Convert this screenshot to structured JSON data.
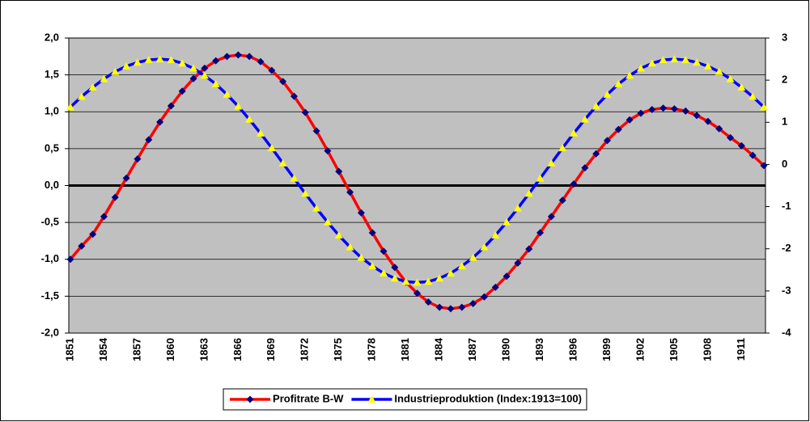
{
  "chart_data": {
    "type": "line",
    "categories": [
      "1851",
      null,
      null,
      "1854",
      null,
      null,
      "1857",
      null,
      null,
      "1860",
      null,
      null,
      "1863",
      null,
      null,
      "1866",
      null,
      null,
      "1869",
      null,
      null,
      "1872",
      null,
      null,
      "1875",
      null,
      null,
      "1878",
      null,
      null,
      "1881",
      null,
      null,
      "1884",
      null,
      null,
      "1887",
      null,
      null,
      "1890",
      null,
      null,
      "1893",
      null,
      null,
      "1896",
      null,
      null,
      "1899",
      null,
      null,
      "1902",
      null,
      null,
      "1905",
      null,
      null,
      "1908",
      null,
      null,
      "1911",
      null,
      null
    ],
    "series": [
      {
        "name": "Profitrate B-W",
        "color": "#ff0000",
        "marker": "diamond",
        "marker_color": "#000080",
        "values": [
          -1.0,
          -0.82,
          -0.66,
          -0.42,
          -0.16,
          0.1,
          0.36,
          0.62,
          0.86,
          1.08,
          1.28,
          1.45,
          1.59,
          1.69,
          1.75,
          1.77,
          1.75,
          1.68,
          1.56,
          1.41,
          1.21,
          0.99,
          0.74,
          0.47,
          0.19,
          -0.09,
          -0.37,
          -0.64,
          -0.89,
          -1.11,
          -1.31,
          -1.46,
          -1.58,
          -1.65,
          -1.67,
          -1.65,
          -1.6,
          -1.51,
          -1.38,
          -1.23,
          -1.05,
          -0.86,
          -0.64,
          -0.42,
          -0.2,
          0.02,
          0.24,
          0.43,
          0.61,
          0.76,
          0.89,
          0.98,
          1.03,
          1.05,
          1.04,
          1.01,
          0.95,
          0.87,
          0.77,
          0.65,
          0.54,
          0.41,
          0.27
        ]
      },
      {
        "name": "Industrieproduktion (Index:1913=100)",
        "color": "#0000ff",
        "marker": "triangle",
        "marker_color": "#ffff00",
        "axis": "y2",
        "values": [
          1.36,
          1.61,
          1.83,
          2.03,
          2.2,
          2.33,
          2.42,
          2.48,
          2.5,
          2.48,
          2.4,
          2.28,
          2.11,
          1.91,
          1.66,
          1.38,
          1.07,
          0.74,
          0.39,
          0.03,
          -0.33,
          -0.69,
          -1.04,
          -1.37,
          -1.68,
          -1.96,
          -2.21,
          -2.41,
          -2.58,
          -2.7,
          -2.78,
          -2.8,
          -2.78,
          -2.7,
          -2.58,
          -2.41,
          -2.21,
          -1.96,
          -1.68,
          -1.37,
          -1.04,
          -0.69,
          -0.33,
          0.03,
          0.39,
          0.74,
          1.07,
          1.38,
          1.66,
          1.91,
          2.11,
          2.28,
          2.4,
          2.48,
          2.5,
          2.48,
          2.42,
          2.33,
          2.2,
          2.03,
          1.83,
          1.61,
          1.36
        ]
      }
    ],
    "ylim": [
      -2,
      2
    ],
    "yticks": [
      {
        "value": -2,
        "label": "-2,0"
      },
      {
        "value": -1.5,
        "label": "-1,5"
      },
      {
        "value": -1,
        "label": "-1,0"
      },
      {
        "value": -0.5,
        "label": "-0,5"
      },
      {
        "value": 0,
        "label": "0,0"
      },
      {
        "value": 0.5,
        "label": "0,5"
      },
      {
        "value": 1,
        "label": "1,0"
      },
      {
        "value": 1.5,
        "label": "1,5"
      },
      {
        "value": 2,
        "label": "2,0"
      }
    ],
    "y2lim": [
      -4,
      3
    ],
    "y2ticks": [
      -4,
      -3,
      -2,
      -1,
      0,
      1,
      2,
      3
    ],
    "grid": true,
    "plot_background": "#c0c0c0",
    "legend": "bottom"
  }
}
